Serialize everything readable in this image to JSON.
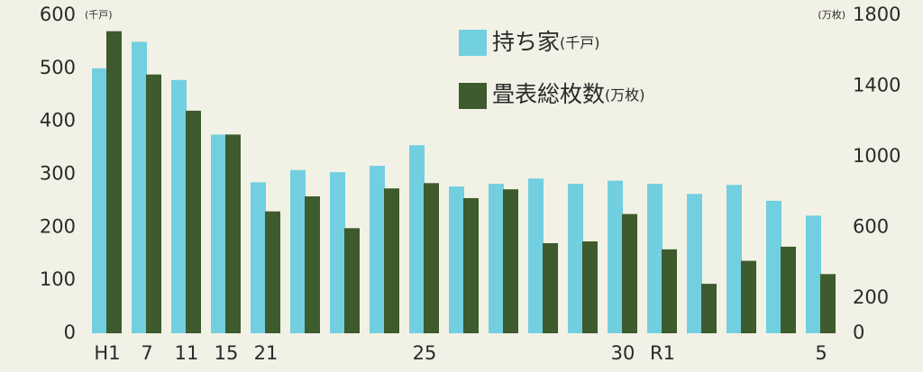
{
  "chart_data": {
    "type": "bar",
    "ylabel": "(千戸)",
    "y2label": "(万枚)",
    "categories": [
      "H1",
      "7",
      "11",
      "15",
      "21",
      null,
      null,
      null,
      "25",
      null,
      null,
      null,
      null,
      "30",
      "R1",
      null,
      null,
      null,
      "5"
    ],
    "series": [
      {
        "name": "持ち家",
        "color": "#72cfe0",
        "values": [
          500,
          550,
          478,
          375,
          285,
          308,
          304,
          316,
          355,
          277,
          282,
          292,
          282,
          288,
          282,
          263,
          280,
          250,
          222
        ]
      },
      {
        "name": "畳表総枚数",
        "color": "#3d5b2c",
        "axis": "y2",
        "values": [
          1710,
          1465,
          1260,
          1125,
          690,
          775,
          595,
          820,
          850,
          765,
          815,
          510,
          520,
          675,
          475,
          280,
          410,
          490,
          335
        ]
      }
    ],
    "ylim": [
      0,
      600
    ],
    "yticks": [
      0,
      100,
      200,
      300,
      400,
      500,
      600
    ],
    "y2lim": [
      0,
      1800
    ],
    "y2ticks": [
      0,
      200,
      600,
      1000,
      1400,
      1800
    ]
  }
}
